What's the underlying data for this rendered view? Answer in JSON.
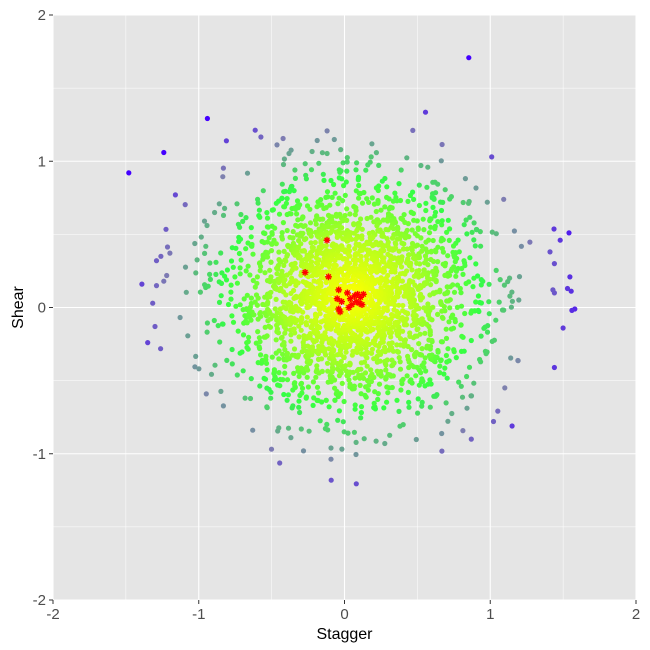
{
  "chart_data": {
    "type": "scatter",
    "title": "",
    "xlabel": "Stagger",
    "ylabel": "Shear",
    "xlim": [
      -2,
      2
    ],
    "ylim": [
      -2,
      2
    ],
    "xticks": [
      "-2",
      "-1",
      "0",
      "1",
      "2"
    ],
    "yticks": [
      "-2",
      "-1",
      "0",
      "1",
      "2"
    ],
    "grid": true,
    "background_color": "#e5e5e5",
    "grid_color": "#ffffff",
    "color_scale": [
      "#ffff00",
      "#aaff22",
      "#33ff44",
      "#7f7fb0",
      "#4400ff"
    ],
    "series": [
      {
        "marker": "circle",
        "cloud": {
          "center": [
            0.05,
            0.08
          ],
          "spread": [
            0.42,
            0.38
          ],
          "point_count": 2600
        },
        "outliers": [
          {
            "x": -1.48,
            "y": 0.92
          },
          {
            "x": -1.24,
            "y": 1.06
          },
          {
            "x": -0.81,
            "y": 1.14
          },
          {
            "x": -1.16,
            "y": 0.77
          },
          {
            "x": -1.26,
            "y": 0.35
          },
          {
            "x": -1.29,
            "y": 0.32
          },
          {
            "x": -1.39,
            "y": 0.16
          },
          {
            "x": -1.29,
            "y": 0.15
          },
          {
            "x": -1.3,
            "y": -0.13
          },
          {
            "x": -1.35,
            "y": -0.24
          },
          {
            "x": 1.01,
            "y": 1.03
          },
          {
            "x": 1.54,
            "y": 0.51
          },
          {
            "x": 1.48,
            "y": 0.46
          },
          {
            "x": 1.41,
            "y": 0.38
          },
          {
            "x": 1.44,
            "y": 0.3
          },
          {
            "x": 1.43,
            "y": 0.12
          },
          {
            "x": 1.44,
            "y": 0.1
          },
          {
            "x": 1.53,
            "y": 0.13
          },
          {
            "x": 1.58,
            "y": -0.01
          },
          {
            "x": 1.56,
            "y": -0.02
          },
          {
            "x": 1.5,
            "y": -0.14
          },
          {
            "x": 1.44,
            "y": -0.41
          },
          {
            "x": 0.87,
            "y": -0.9
          },
          {
            "x": 1.15,
            "y": -0.81
          },
          {
            "x": -0.83,
            "y": 0.63
          },
          {
            "x": 0.98,
            "y": 0.72
          },
          {
            "x": 1.1,
            "y": -0.55
          }
        ]
      },
      {
        "marker": "asterisk",
        "color": "#ff0000",
        "points": [
          {
            "x": -0.12,
            "y": 0.46
          },
          {
            "x": -0.27,
            "y": 0.24
          },
          {
            "x": -0.11,
            "y": 0.21
          },
          {
            "x": -0.04,
            "y": 0.12
          },
          {
            "x": -0.05,
            "y": 0.06
          },
          {
            "x": -0.02,
            "y": 0.04
          },
          {
            "x": -0.04,
            "y": -0.01
          },
          {
            "x": -0.03,
            "y": -0.03
          },
          {
            "x": 0.02,
            "y": 0.1
          },
          {
            "x": 0.04,
            "y": 0.06
          },
          {
            "x": 0.05,
            "y": 0.02
          },
          {
            "x": 0.07,
            "y": 0.08
          },
          {
            "x": 0.08,
            "y": 0.04
          },
          {
            "x": 0.09,
            "y": 0.09
          },
          {
            "x": 0.1,
            "y": 0.03
          },
          {
            "x": 0.11,
            "y": 0.07
          },
          {
            "x": 0.12,
            "y": 0.02
          },
          {
            "x": 0.13,
            "y": 0.09
          },
          {
            "x": 0.03,
            "y": 0.0
          }
        ]
      }
    ]
  }
}
